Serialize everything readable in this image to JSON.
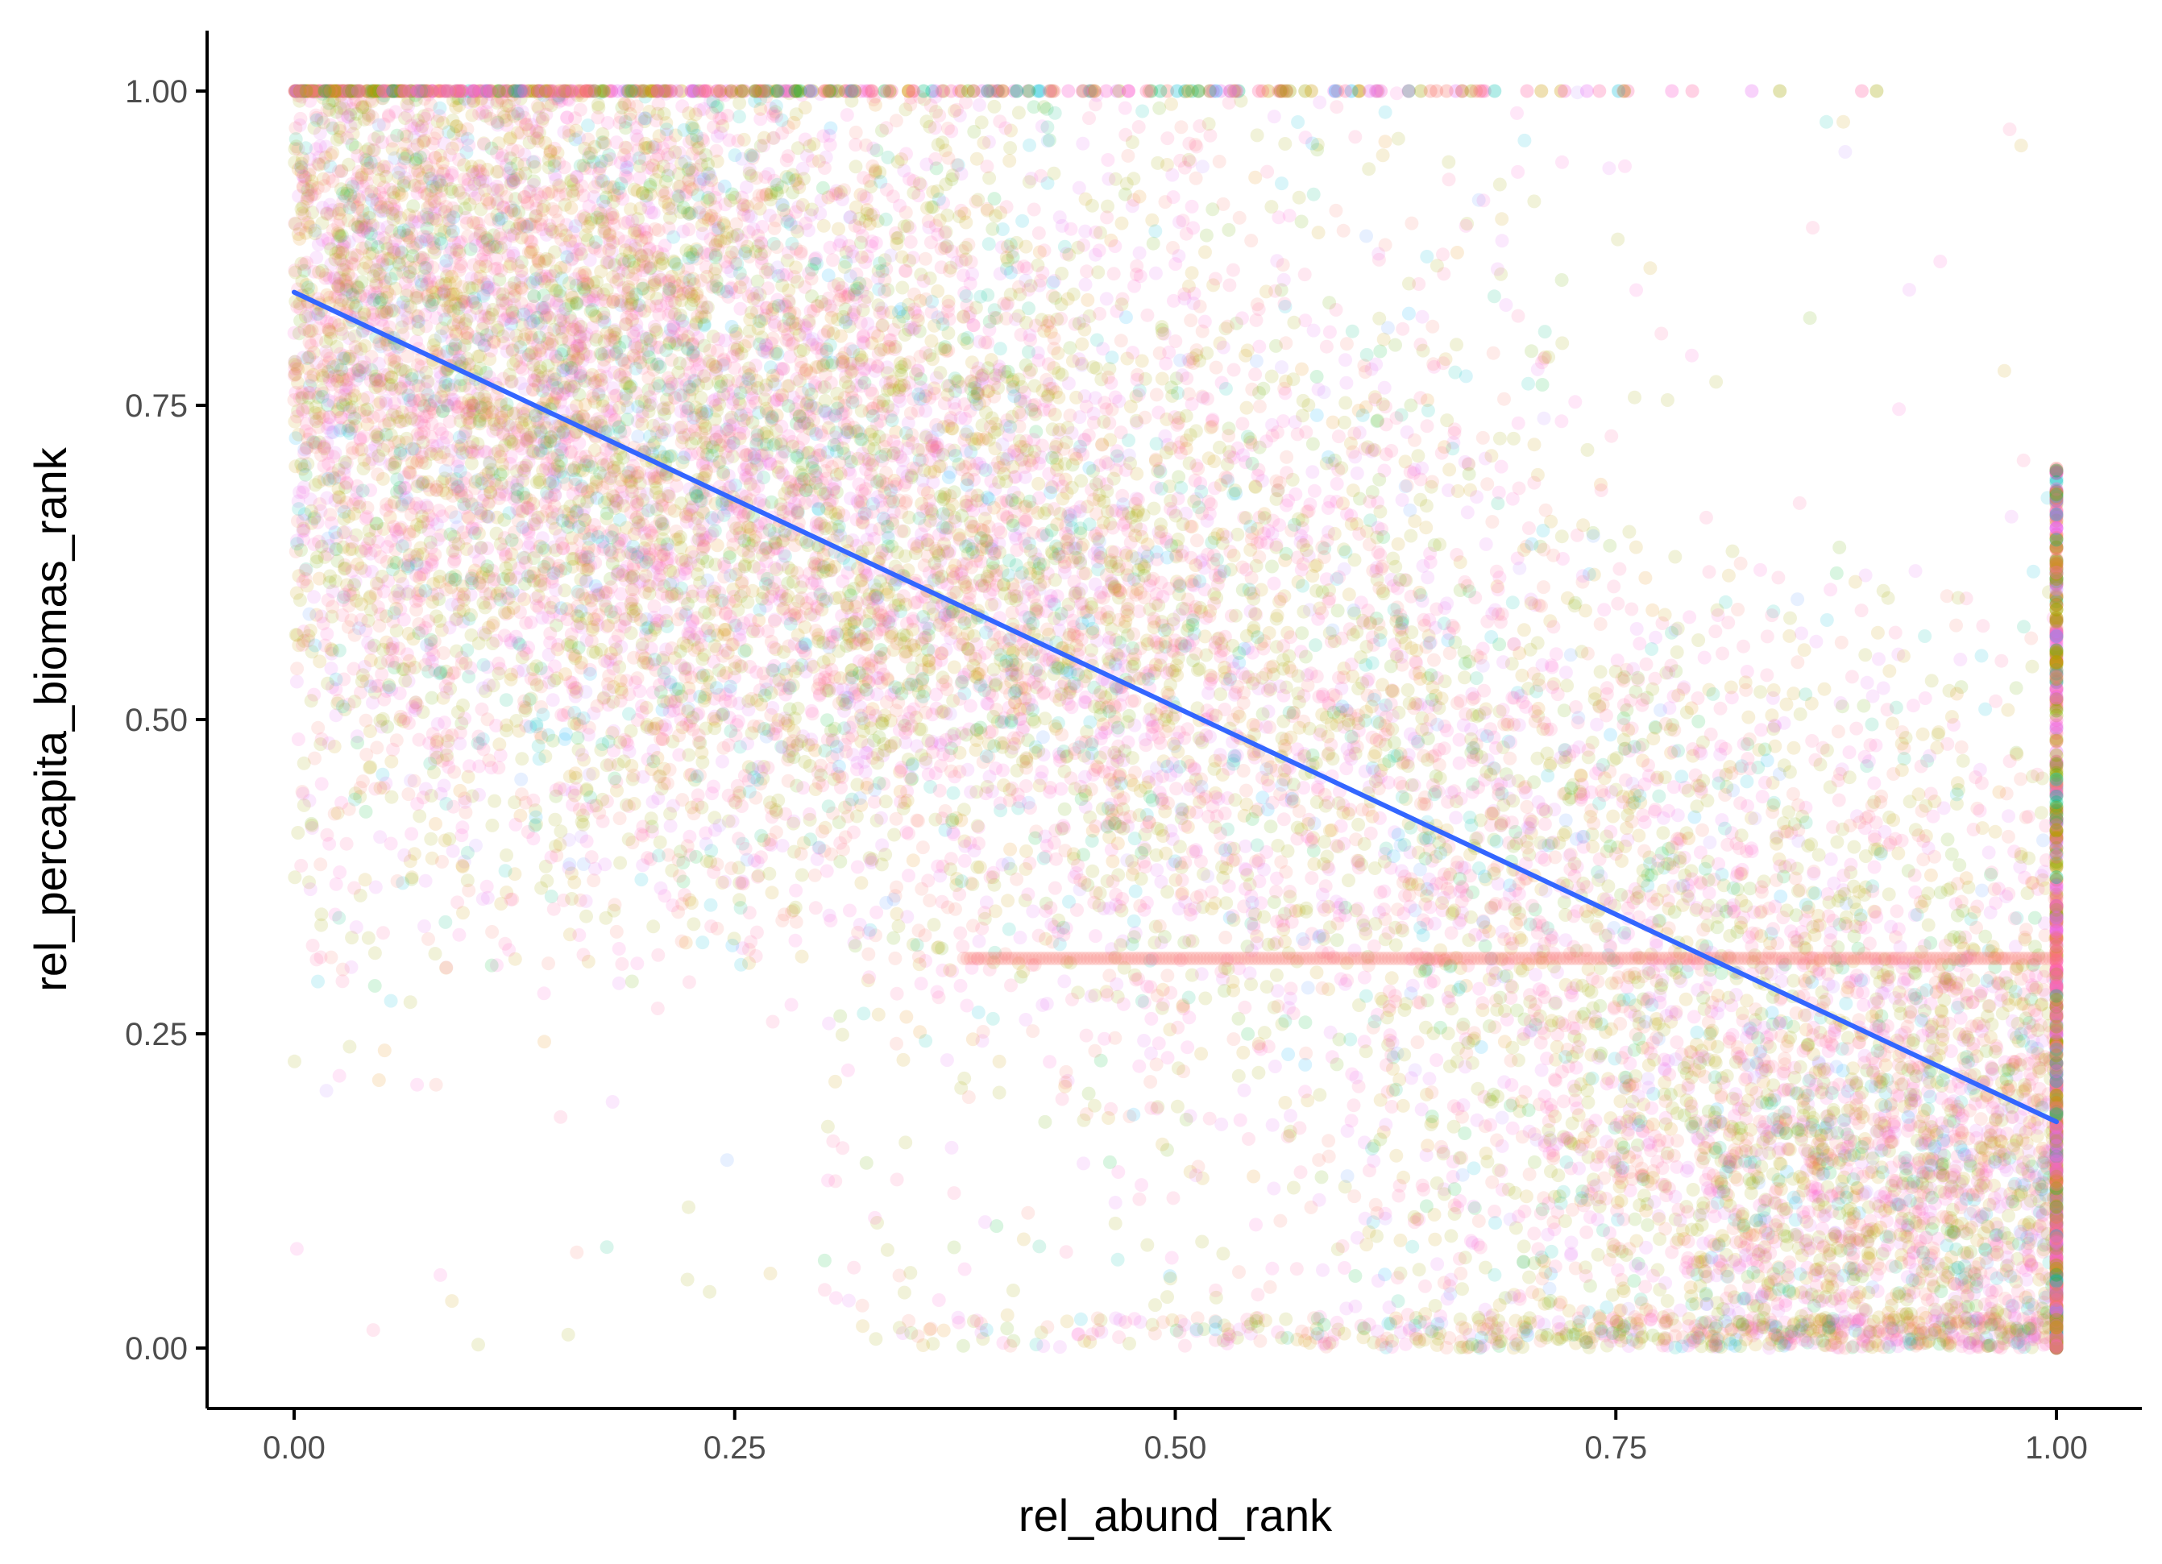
{
  "chart_data": {
    "type": "scatter",
    "title": "",
    "xlabel": "rel_abund_rank",
    "ylabel": "rel_percapita_biomas_rank",
    "xlim": [
      -0.1,
      1.05
    ],
    "ylim": [
      -0.05,
      1.05
    ],
    "x_ticks": [
      0.0,
      0.25,
      0.5,
      0.75,
      1.0
    ],
    "x_tick_labels": [
      "0.00",
      "0.25",
      "0.50",
      "0.75",
      "1.00"
    ],
    "y_ticks": [
      0.0,
      0.25,
      0.5,
      0.75,
      1.0
    ],
    "y_tick_labels": [
      "0.00",
      "0.25",
      "0.50",
      "0.75",
      "1.00"
    ],
    "grid": false,
    "legend": "none",
    "point_opacity": 0.15,
    "point_colors": [
      "#F8766D",
      "#E58700",
      "#C99800",
      "#A3A500",
      "#6BB100",
      "#00BA38",
      "#00BF7D",
      "#00C0AF",
      "#00BCD8",
      "#00B0F6",
      "#619CFF",
      "#B983FF",
      "#E76BF3",
      "#FD61D1",
      "#FF67A4"
    ],
    "density_regions": [
      {
        "description": "dense",
        "x": [
          0.0,
          0.35
        ],
        "y": [
          0.75,
          1.0
        ]
      },
      {
        "description": "dense",
        "x": [
          0.0,
          0.6
        ],
        "y": [
          0.45,
          0.8
        ]
      },
      {
        "description": "dense",
        "x": [
          0.7,
          1.0
        ],
        "y": [
          0.0,
          0.3
        ]
      },
      {
        "description": "moderate",
        "x": [
          0.35,
          0.85
        ],
        "y": [
          0.15,
          0.55
        ]
      },
      {
        "description": "sparse",
        "x": [
          0.75,
          1.0
        ],
        "y": [
          0.55,
          1.0
        ]
      },
      {
        "description": "sparse",
        "x": [
          0.0,
          0.25
        ],
        "y": [
          0.0,
          0.3
        ]
      }
    ],
    "horizontal_band": {
      "x": [
        0.38,
        1.0
      ],
      "y": 0.31
    },
    "vertical_band": {
      "x": 1.0,
      "y": [
        0.0,
        0.7
      ]
    },
    "trend_line": {
      "color": "#3366FF",
      "x": [
        0.0,
        1.0
      ],
      "y": [
        0.84,
        0.18
      ]
    }
  }
}
